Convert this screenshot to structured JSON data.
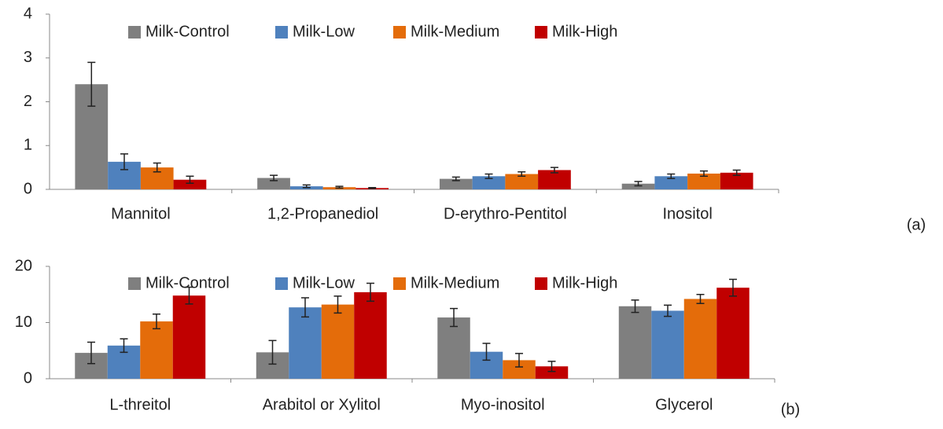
{
  "chart_data": [
    {
      "type": "bar",
      "annotation": "(a)",
      "categories": [
        "Mannitol",
        "1,2-Propanediol",
        "D-erythro-Pentitol",
        "Inositol"
      ],
      "series": [
        {
          "name": "Milk-Control",
          "color": "#7f7f7f",
          "values": [
            2.4,
            0.26,
            0.24,
            0.13
          ],
          "errors": [
            0.5,
            0.06,
            0.04,
            0.05
          ]
        },
        {
          "name": "Milk-Low",
          "color": "#4f81bd",
          "values": [
            0.63,
            0.07,
            0.3,
            0.3
          ],
          "errors": [
            0.18,
            0.03,
            0.05,
            0.05
          ]
        },
        {
          "name": "Milk-Medium",
          "color": "#e46c0a",
          "values": [
            0.5,
            0.05,
            0.35,
            0.36
          ],
          "errors": [
            0.1,
            0.02,
            0.05,
            0.06
          ]
        },
        {
          "name": "Milk-High",
          "color": "#c00000",
          "values": [
            0.22,
            0.03,
            0.44,
            0.38
          ],
          "errors": [
            0.08,
            0.01,
            0.06,
            0.06
          ]
        }
      ],
      "ylim": [
        0,
        4
      ],
      "yticks": [
        0,
        1,
        2,
        3,
        4
      ]
    },
    {
      "type": "bar",
      "annotation": "(b)",
      "categories": [
        "L-threitol",
        "Arabitol or Xylitol",
        "Myo-inositol",
        "Glycerol"
      ],
      "series": [
        {
          "name": "Milk-Control",
          "color": "#7f7f7f",
          "values": [
            4.6,
            4.7,
            10.9,
            12.9
          ],
          "errors": [
            1.9,
            2.1,
            1.6,
            1.1
          ]
        },
        {
          "name": "Milk-Low",
          "color": "#4f81bd",
          "values": [
            5.9,
            12.7,
            4.8,
            12.1
          ],
          "errors": [
            1.2,
            1.7,
            1.5,
            1.0
          ]
        },
        {
          "name": "Milk-Medium",
          "color": "#e46c0a",
          "values": [
            10.2,
            13.2,
            3.3,
            14.2
          ],
          "errors": [
            1.3,
            1.5,
            1.2,
            0.8
          ]
        },
        {
          "name": "Milk-High",
          "color": "#c00000",
          "values": [
            14.8,
            15.4,
            2.2,
            16.2
          ],
          "errors": [
            1.5,
            1.6,
            0.9,
            1.5
          ]
        }
      ],
      "ylim": [
        0,
        20
      ],
      "yticks": [
        0,
        10,
        20
      ]
    }
  ]
}
